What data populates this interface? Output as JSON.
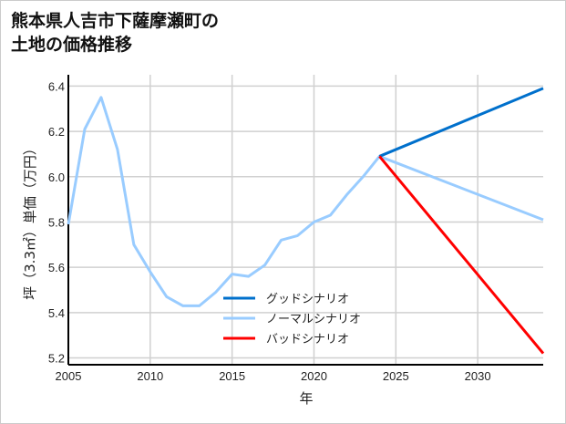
{
  "chart_data": {
    "type": "line",
    "title_lines": [
      "熊本県人吉市下薩摩瀬町の",
      "土地の価格推移"
    ],
    "xlabel": "年",
    "ylabel": "坪（3.3㎡）単価（万円）",
    "xlim": [
      2005,
      2034
    ],
    "ylim": [
      5.17,
      6.45
    ],
    "xticks": [
      2005,
      2010,
      2015,
      2020,
      2025,
      2030
    ],
    "yticks": [
      5.2,
      5.4,
      5.6,
      5.8,
      6.0,
      6.2,
      6.4
    ],
    "ytick_labels": [
      "5.2",
      "5.4",
      "5.6",
      "5.8",
      "6.0",
      "6.2",
      "6.4"
    ],
    "grid": true,
    "legend_position": "bottom-center",
    "series": [
      {
        "name": "ノーマルシナリオ",
        "color": "#99ccff",
        "x": [
          2005,
          2006,
          2007,
          2008,
          2009,
          2010,
          2011,
          2012,
          2013,
          2014,
          2015,
          2016,
          2017,
          2018,
          2019,
          2020,
          2021,
          2022,
          2023,
          2024,
          2034
        ],
        "values": [
          5.79,
          6.21,
          6.35,
          6.12,
          5.7,
          5.58,
          5.47,
          5.43,
          5.43,
          5.49,
          5.57,
          5.56,
          5.61,
          5.72,
          5.74,
          5.8,
          5.83,
          5.92,
          6.0,
          6.09,
          5.81
        ]
      },
      {
        "name": "グッドシナリオ",
        "color": "#0070cc",
        "x": [
          2024,
          2034
        ],
        "values": [
          6.09,
          6.39
        ]
      },
      {
        "name": "バッドシナリオ",
        "color": "#ff0000",
        "x": [
          2024,
          2034
        ],
        "values": [
          6.09,
          5.22
        ]
      }
    ],
    "legend_order": [
      "グッドシナリオ",
      "ノーマルシナリオ",
      "バッドシナリオ"
    ]
  }
}
